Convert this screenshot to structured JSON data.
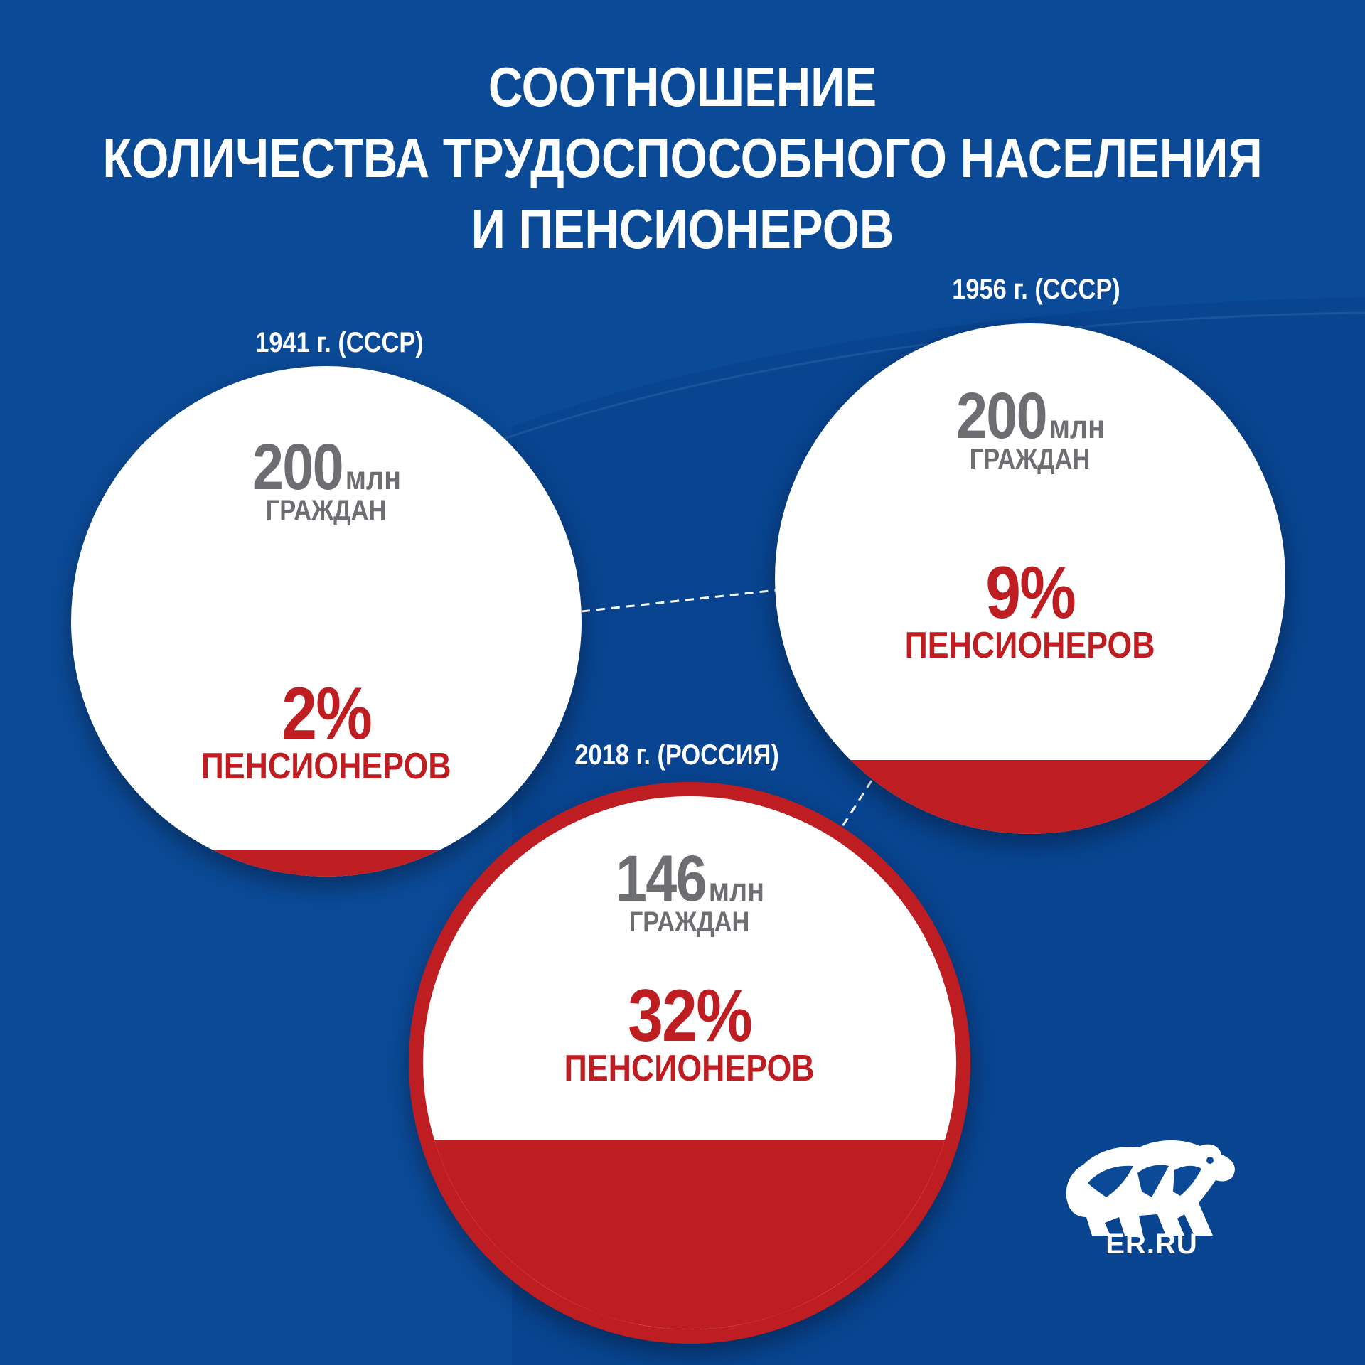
{
  "title": {
    "line1": "СООТНОШЕНИЕ",
    "line2": "КОЛИЧЕСТВА ТРУДОСПОСОБНОГО НАСЕЛЕНИЯ",
    "line3": "И ПЕНСИОНЕРОВ"
  },
  "periods": [
    {
      "year_label": "1941 г. (СССР)",
      "citizens": "200",
      "citizens_unit": "млн",
      "citizens_label": "ГРАЖДАН",
      "pensioners_pct": "2%",
      "pensioners_label": "ПЕНСИОНЕРОВ",
      "pensioner_share": 0.02
    },
    {
      "year_label": "1956 г. (СССР)",
      "citizens": "200",
      "citizens_unit": "млн",
      "citizens_label": "ГРАЖДАН",
      "pensioners_pct": "9%",
      "pensioners_label": "ПЕНСИОНЕРОВ",
      "pensioner_share": 0.09
    },
    {
      "year_label": "2018 г. (РОССИЯ)",
      "citizens": "146",
      "citizens_unit": "млн",
      "citizens_label": "ГРАЖДАН",
      "pensioners_pct": "32%",
      "pensioners_label": "ПЕНСИОНЕРОВ",
      "pensioner_share": 0.32
    }
  ],
  "logo": {
    "text": "ER.RU",
    "icon": "bear-icon"
  },
  "colors": {
    "background": "#0b4a97",
    "accent_red": "#be1e22",
    "text_gray": "#6d6e71"
  }
}
